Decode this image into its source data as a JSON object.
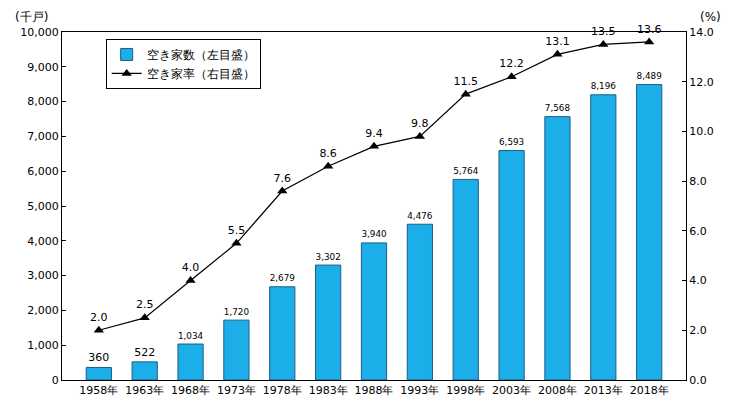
{
  "chart_data": {
    "type": "bar",
    "y_label": "(千戸)",
    "y2_label": "(%)",
    "categories": [
      "1958年",
      "1963年",
      "1968年",
      "1973年",
      "1978年",
      "1983年",
      "1988年",
      "1993年",
      "1998年",
      "2003年",
      "2008年",
      "2013年",
      "2018年"
    ],
    "series": [
      {
        "name": "空き家数（左目盛）",
        "type": "bar",
        "color": "#1CAEE8",
        "values": [
          360,
          522,
          1034,
          1720,
          2679,
          3302,
          3940,
          4476,
          5764,
          6593,
          7568,
          8196,
          8489
        ],
        "value_labels": [
          "360",
          "522",
          "1,034",
          "1,720",
          "2,679",
          "3,302",
          "3,940",
          "4,476",
          "5,764",
          "6,593",
          "7,568",
          "8,196",
          "8,489"
        ]
      },
      {
        "name": "空き家率（右目盛）",
        "type": "line",
        "axis": "y2",
        "color": "#000000",
        "marker": "triangle-up",
        "line_style": "solid",
        "values": [
          2.0,
          2.5,
          4.0,
          5.5,
          7.6,
          8.6,
          9.4,
          9.8,
          11.5,
          12.2,
          13.1,
          13.5,
          13.6
        ],
        "value_labels": [
          "2.0",
          "2.5",
          "4.0",
          "5.5",
          "7.6",
          "8.6",
          "9.4",
          "9.8",
          "11.5",
          "12.2",
          "13.1",
          "13.5",
          "13.6"
        ]
      }
    ],
    "ylim": [
      0,
      10000
    ],
    "yticks": [
      0,
      {
        "value": 1000,
        "label": "1,000"
      },
      {
        "value": 2000,
        "label": "2,000"
      },
      {
        "value": 3000,
        "label": "3,000"
      },
      {
        "value": 4000,
        "label": "4,000"
      },
      {
        "value": 5000,
        "label": "5,000"
      },
      {
        "value": 6000,
        "label": "6,000"
      },
      {
        "value": 7000,
        "label": "7,000"
      },
      {
        "value": 8000,
        "label": "8,000"
      },
      {
        "value": 9000,
        "label": "9,000"
      },
      {
        "value": 10000,
        "label": "10,000"
      }
    ],
    "y2lim": [
      0,
      14
    ],
    "y2ticks": [
      {
        "value": 0,
        "label": "0.0"
      },
      {
        "value": 2,
        "label": "2.0"
      },
      {
        "value": 4,
        "label": "4.0"
      },
      {
        "value": 6,
        "label": "6.0"
      },
      {
        "value": 8,
        "label": "8.0"
      },
      {
        "value": 10,
        "label": "10.0"
      },
      {
        "value": 12,
        "label": "12.0"
      },
      {
        "value": 14,
        "label": "14.0"
      }
    ],
    "grid": false,
    "legend": "upper left",
    "data_labels": true
  }
}
